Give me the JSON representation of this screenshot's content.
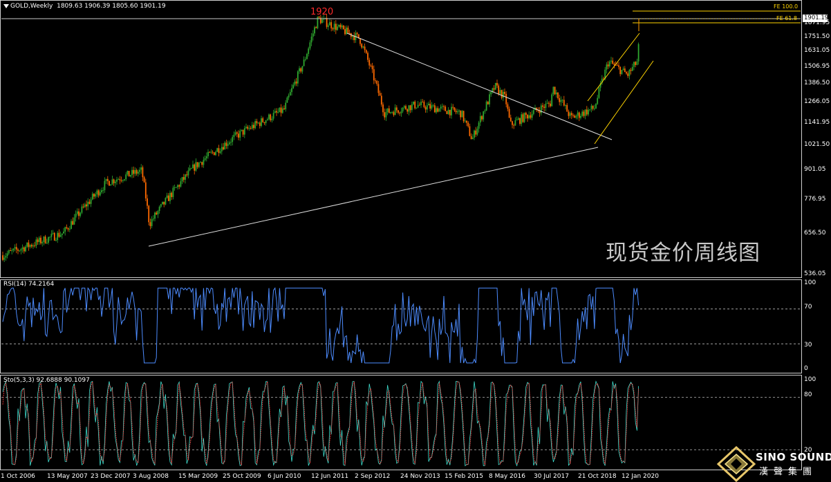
{
  "header": {
    "symbol": "GOLD,Weekly",
    "ohlc": "1809.63 1906.39 1805.60 1901.19"
  },
  "main": {
    "peak_label": "1920",
    "last_price": "1901.19",
    "fe_100": "FE 100.0",
    "fe_618": "FE 61.8",
    "watermark": "现货金价周线图"
  },
  "rsi": {
    "header": "RSI(14) 74.2164",
    "levels": [
      "100",
      "70",
      "30",
      "0"
    ]
  },
  "sto": {
    "header": "Sto(5,3,3) 92.6888 90.1097",
    "levels": [
      "100",
      "80",
      "20"
    ]
  },
  "logo": {
    "en": "SINO SOUND",
    "cn": "漢聲集團"
  },
  "colors": {
    "background": "#000000",
    "bull_candle": "#2fa82f",
    "bear_candle": "#ff6a00",
    "rsi_line": "#4d8cff",
    "sto_main": "#40e0d0",
    "sto_signal": "#ff3b3b",
    "fibo": "#ffd400",
    "trendline": "#e0e0e0",
    "peak_label": "#ff2a2a"
  },
  "chart_data": [
    {
      "type": "candlestick",
      "title": "GOLD,Weekly",
      "y_ticks": [
        "1871.95",
        "1751.50",
        "1631.05",
        "1506.95",
        "1386.50",
        "1266.05",
        "1141.95",
        "1021.50",
        "901.05",
        "776.95",
        "656.50",
        "536.05"
      ],
      "x_ticks": [
        "1 Oct 2006",
        "13 May 2007",
        "23 Dec 2007",
        "3 Aug 2008",
        "15 Mar 2009",
        "25 Oct 2009",
        "6 Jun 2010",
        "12 Jun 2011",
        "2 Sep 2012",
        "24 Nov 2013",
        "15 Feb 2015",
        "8 May 2016",
        "30 Jul 2017",
        "21 Oct 2018",
        "12 Jan 2020"
      ],
      "ylim": [
        536.05,
        1920
      ],
      "key_points": [
        {
          "date": "1 Oct 2006",
          "price": 590
        },
        {
          "date": "13 May 2007",
          "price": 660
        },
        {
          "date": "23 Dec 2007",
          "price": 850
        },
        {
          "date": "3 Aug 2008",
          "price": 900
        },
        {
          "date": "Nov 2008",
          "price": 690
        },
        {
          "date": "15 Mar 2009",
          "price": 920
        },
        {
          "date": "25 Oct 2009",
          "price": 1080
        },
        {
          "date": "6 Jun 2010",
          "price": 1220
        },
        {
          "date": "12 Jun 2011",
          "price": 1550
        },
        {
          "date": "Sep 2011",
          "price": 1920
        },
        {
          "date": "2 Sep 2012",
          "price": 1740
        },
        {
          "date": "Jun 2013",
          "price": 1200
        },
        {
          "date": "24 Nov 2013",
          "price": 1250
        },
        {
          "date": "15 Feb 2015",
          "price": 1200
        },
        {
          "date": "Dec 2015",
          "price": 1050
        },
        {
          "date": "8 May 2016",
          "price": 1290
        },
        {
          "date": "Jul 2016",
          "price": 1370
        },
        {
          "date": "Dec 2016",
          "price": 1130
        },
        {
          "date": "30 Jul 2017",
          "price": 1260
        },
        {
          "date": "Jan 2018",
          "price": 1360
        },
        {
          "date": "Aug 2018",
          "price": 1170
        },
        {
          "date": "21 Oct 2018",
          "price": 1230
        },
        {
          "date": "Sep 2019",
          "price": 1550
        },
        {
          "date": "12 Jan 2020",
          "price": 1560
        },
        {
          "date": "Mar 2020",
          "price": 1450
        },
        {
          "date": "Jul 2020",
          "price": 1901.19
        }
      ]
    },
    {
      "type": "line",
      "title": "RSI(14) 74.2164",
      "ylim": [
        0,
        100
      ],
      "levels": [
        70,
        30
      ],
      "last_value": 74.2164
    },
    {
      "type": "line",
      "title": "Sto(5,3,3) 92.6888 90.1097",
      "ylim": [
        0,
        100
      ],
      "levels": [
        80,
        20
      ],
      "last_main": 92.6888,
      "last_signal": 90.1097
    }
  ]
}
